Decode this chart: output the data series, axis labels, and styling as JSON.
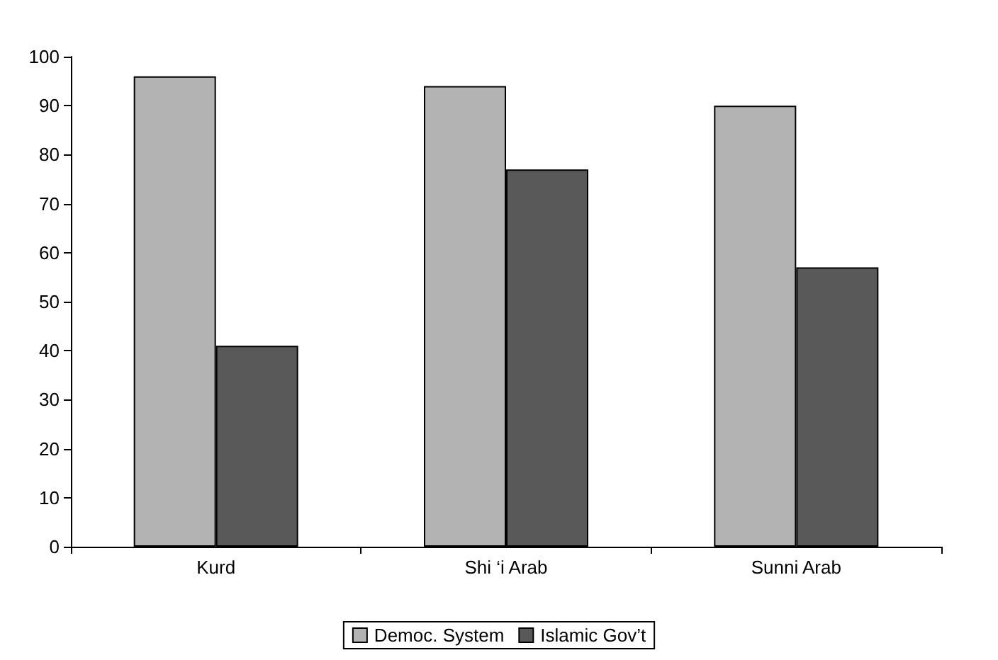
{
  "chart_data": {
    "type": "bar",
    "categories": [
      "Kurd",
      "Shi ‘i Arab",
      "Sunni Arab"
    ],
    "series": [
      {
        "name": "Democ. System",
        "color": "#b3b3b3",
        "values": [
          96,
          94,
          90
        ]
      },
      {
        "name": "Islamic Gov’t",
        "color": "#595959",
        "values": [
          41,
          77,
          57
        ]
      }
    ],
    "ylim": [
      0,
      100
    ],
    "yticks": [
      0,
      10,
      20,
      30,
      40,
      50,
      60,
      70,
      80,
      90,
      100
    ],
    "grid": false,
    "legend": "bottom"
  }
}
